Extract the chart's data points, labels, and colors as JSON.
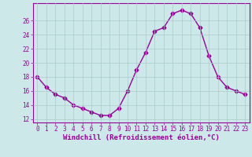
{
  "x": [
    0,
    1,
    2,
    3,
    4,
    5,
    6,
    7,
    8,
    9,
    10,
    11,
    12,
    13,
    14,
    15,
    16,
    17,
    18,
    19,
    20,
    21,
    22,
    23
  ],
  "y": [
    18.0,
    16.5,
    15.5,
    15.0,
    14.0,
    13.5,
    13.0,
    12.5,
    12.5,
    13.5,
    16.0,
    19.0,
    21.5,
    24.5,
    25.0,
    27.0,
    27.5,
    27.0,
    25.0,
    21.0,
    18.0,
    16.5,
    16.0,
    15.5
  ],
  "line_color": "#990099",
  "marker": "D",
  "marker_size": 2.5,
  "line_width": 1.0,
  "bg_color": "#cce8e8",
  "grid_color": "#aacccc",
  "xlabel": "Windchill (Refroidissement éolien,°C)",
  "xlim": [
    -0.5,
    23.5
  ],
  "ylim": [
    11.5,
    28.5
  ],
  "yticks": [
    12,
    14,
    16,
    18,
    20,
    22,
    24,
    26
  ],
  "xticks": [
    0,
    1,
    2,
    3,
    4,
    5,
    6,
    7,
    8,
    9,
    10,
    11,
    12,
    13,
    14,
    15,
    16,
    17,
    18,
    19,
    20,
    21,
    22,
    23
  ],
  "tick_label_color": "#990099",
  "tick_label_size": 5.5,
  "xlabel_size": 6.5,
  "xlabel_color": "#990099"
}
